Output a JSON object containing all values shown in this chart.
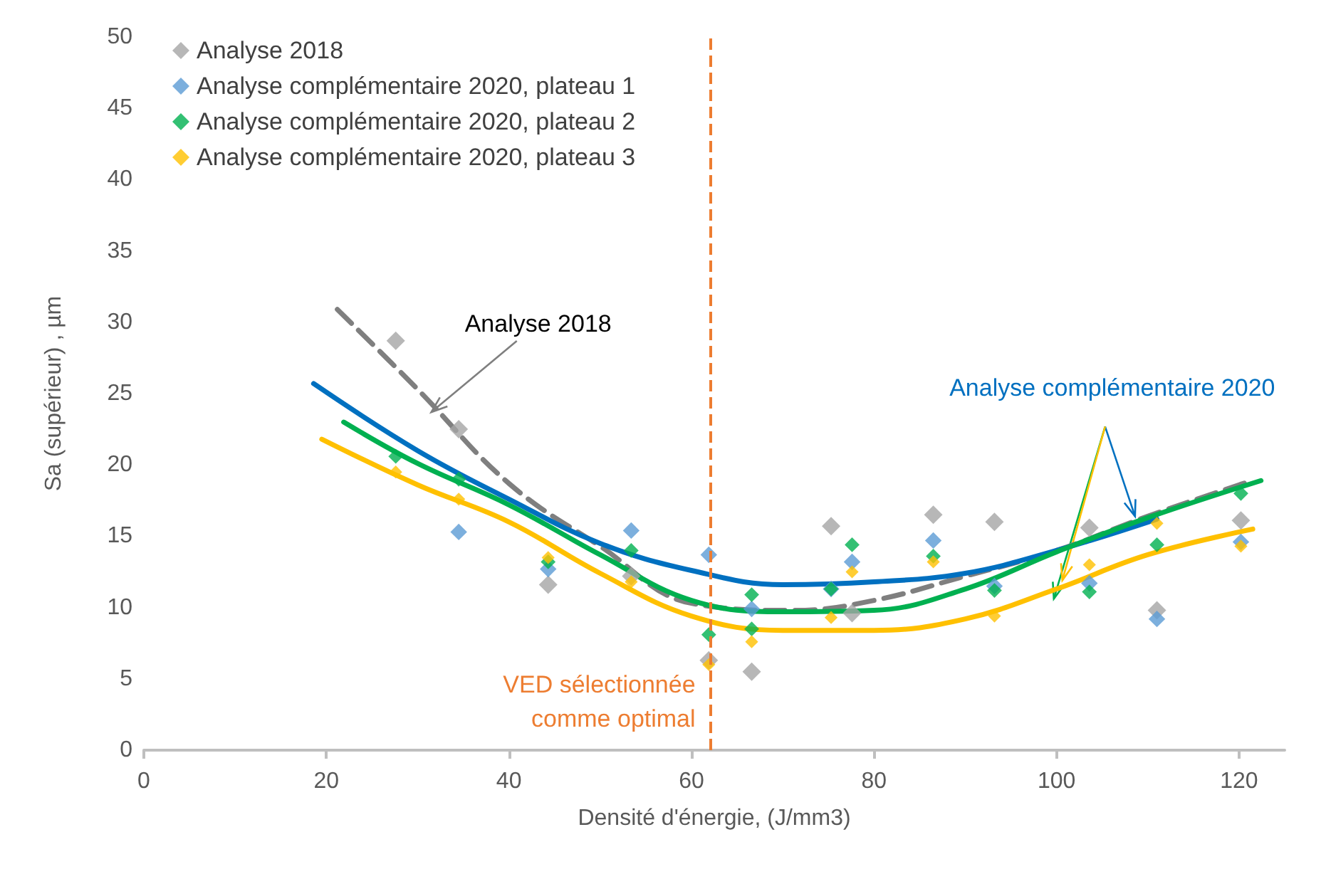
{
  "chart_data": {
    "type": "scatter",
    "xlabel": "Densité d'énergie, (J/mm3)",
    "ylabel": "Sa (supérieur) , µm",
    "xlim": [
      0,
      125
    ],
    "xticks": [
      0,
      20,
      40,
      60,
      80,
      100,
      120
    ],
    "ylim": [
      0,
      50
    ],
    "yticks": [
      0,
      5,
      10,
      15,
      20,
      25,
      30,
      35,
      40,
      45,
      50
    ],
    "grid": false,
    "legend": "top left",
    "marker": "diamond",
    "series": [
      {
        "name": "Analyse 2018",
        "color": "#a5a5a5",
        "x": [
          27.6,
          34.5,
          44.3,
          53.4,
          61.9,
          66.6,
          75.3,
          77.6,
          86.5,
          93.2,
          103.6,
          111,
          120.2
        ],
        "values": [
          28.7,
          22.5,
          11.6,
          12.2,
          6.3,
          5.5,
          15.7,
          9.6,
          16.5,
          16.0,
          15.6,
          9.8,
          16.1
        ]
      },
      {
        "name": "Analyse complémentaire 2020, plateau 1",
        "color": "#5b9bd5",
        "x": [
          34.5,
          44.3,
          53.4,
          61.9,
          66.6,
          75.3,
          77.6,
          86.5,
          93.2,
          103.6,
          111,
          120.2
        ],
        "values": [
          15.3,
          12.7,
          15.4,
          13.7,
          9.9,
          11.3,
          13.2,
          14.7,
          11.5,
          11.7,
          9.2,
          14.6
        ]
      },
      {
        "name": "Analyse complémentaire 2020, plateau 2",
        "color": "#00b050",
        "x": [
          27.6,
          34.5,
          44.3,
          53.4,
          61.9,
          66.6,
          66.6,
          75.3,
          77.6,
          86.5,
          93.2,
          103.6,
          111,
          120.2
        ],
        "values": [
          20.6,
          19.0,
          13.2,
          14.0,
          8.1,
          10.9,
          8.5,
          11.3,
          14.4,
          13.6,
          11.2,
          11.1,
          14.4,
          18.0
        ]
      },
      {
        "name": "Analyse complémentaire 2020, plateau 3",
        "color": "#ffc000",
        "x": [
          27.6,
          34.5,
          44.3,
          53.4,
          61.9,
          66.6,
          75.3,
          77.6,
          86.5,
          93.2,
          103.6,
          111,
          120.2
        ],
        "values": [
          19.5,
          17.6,
          13.5,
          11.8,
          6.0,
          7.6,
          9.3,
          12.5,
          13.2,
          9.4,
          13.0,
          15.9,
          14.3
        ]
      },
      {
        "type": "line",
        "marker": "none",
        "line_style": "dashed",
        "color": "#7f7f7f",
        "x": [
          21.2,
          30,
          40,
          50,
          60,
          71.3,
          80,
          90,
          100,
          110,
          120,
          121
        ],
        "values": [
          30.9,
          25.3,
          18.7,
          14.3,
          10.3,
          9.8,
          10.5,
          12.2,
          14.0,
          16.4,
          18.6,
          18.8
        ]
      },
      {
        "type": "line",
        "marker": "none",
        "line_style": "solid",
        "color": "#0070c0",
        "x": [
          18.6,
          30,
          40,
          50,
          60,
          70,
          80,
          90,
          100,
          111
        ],
        "values": [
          25.7,
          21.0,
          17.6,
          14.5,
          12.6,
          11.6,
          11.8,
          12.4,
          14.0,
          16.2
        ]
      },
      {
        "type": "line",
        "marker": "none",
        "line_style": "solid",
        "color": "#00b050",
        "x": [
          21.9,
          30,
          40,
          50,
          60,
          70,
          80,
          90,
          100,
          110,
          122.4
        ],
        "values": [
          23.0,
          20.1,
          17.2,
          13.7,
          10.5,
          9.7,
          9.8,
          11.3,
          13.9,
          16.3,
          18.9
        ]
      },
      {
        "type": "line",
        "marker": "none",
        "line_style": "solid",
        "color": "#ffc000",
        "x": [
          19.5,
          30,
          40,
          50,
          60,
          70,
          80,
          90,
          100,
          110,
          121.5
        ],
        "values": [
          21.8,
          18.6,
          16.0,
          12.4,
          9.4,
          8.4,
          8.4,
          9.2,
          11.3,
          13.7,
          15.5
        ]
      }
    ],
    "ref_lines": [
      {
        "axis": "x",
        "value": 62,
        "label": "VED sélectionnée\ncomme optimal",
        "color": "#ed7d31",
        "line_style": "dashed"
      }
    ],
    "annotations": [
      {
        "text": "Analyse 2018",
        "x": 31.5,
        "y": 23.7
      },
      {
        "text": "Analyse complémentaire 2020",
        "x": 108.6,
        "y": 16.4
      }
    ]
  }
}
